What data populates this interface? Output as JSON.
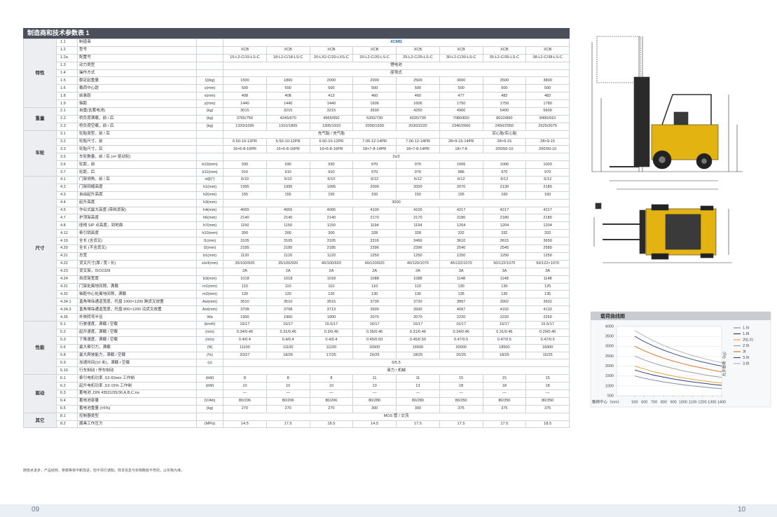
{
  "title": "制造商和技术参数表 1",
  "sections": [
    {
      "group": "特性",
      "rows": [
        {
          "code": "1.1",
          "item": "制造商",
          "values": [
            "XCMG",
            null,
            null,
            null,
            null,
            null,
            null,
            null
          ]
        },
        {
          "code": "1.2",
          "item": "型号",
          "values": [
            "XCB",
            "XCB",
            "XCB",
            "XCB",
            "XCB",
            "XCB",
            "XCB",
            "XCB"
          ]
        },
        {
          "code": "1.2a",
          "item": "配置号",
          "values": [
            "15-L2-C/15-LS-C",
            "18-L2-C/18-LS-C",
            "20-LX2-C/20-LXS-C",
            "20-L2-C/20-LS-C",
            "25-L2-C/25-LS-C",
            "30-L2-C/30-LS-C",
            "35-L2-C/35-LS-C",
            "38-L2-C/38-LS-C"
          ]
        },
        {
          "code": "1.3",
          "item": "动力类型",
          "values": [
            "锂电池",
            null,
            null,
            null,
            null,
            null,
            null,
            null
          ]
        },
        {
          "code": "1.4",
          "item": "操作方式",
          "values": [
            "座驾式",
            null,
            null,
            null,
            null,
            null,
            null,
            null
          ]
        },
        {
          "code": "1.5",
          "item": "额定起重量",
          "unit": "Q(kg)",
          "values": [
            "1500",
            "1800",
            "2000",
            "2000",
            "2500",
            "3000",
            "3500",
            "3800"
          ]
        },
        {
          "code": "1.6",
          "item": "载荷中心距",
          "unit": "c(mm)",
          "values": [
            "500",
            "500",
            "500",
            "500",
            "500",
            "500",
            "500",
            "500"
          ]
        },
        {
          "code": "1.8",
          "item": "前悬距",
          "unit": "x(mm)",
          "values": [
            "408",
            "408",
            "413",
            "460",
            "460",
            "477",
            "482",
            "482"
          ]
        },
        {
          "code": "1.9",
          "item": "轴距",
          "unit": "y(mm)",
          "values": [
            "1440",
            "1440",
            "1440",
            "1606",
            "1606",
            "1750",
            "1750",
            "1780"
          ]
        }
      ]
    },
    {
      "group": "重量",
      "rows": [
        {
          "code": "2.1",
          "item": "自重(含蓄电池)",
          "unit": "(kg)",
          "values": [
            "3015",
            "3215",
            "3215",
            "3930",
            "4250",
            "4900",
            "5400",
            "5600"
          ]
        },
        {
          "code": "2.2",
          "item": "桥负荷满载，前 / 后",
          "unit": "(kg)",
          "values": [
            "3765/750",
            "4245/670",
            "4565/650",
            "5200/730",
            "6020/730",
            "7080/820",
            "8010/890",
            "8490/910"
          ]
        },
        {
          "code": "2.3",
          "item": "桥负荷空载，前 / 后",
          "unit": "(kg)",
          "values": [
            "1320/1695",
            "1310/1805",
            "1305/1910",
            "2000/1930",
            "2030/2220",
            "2340/2560",
            "2450/2950",
            "2525/3075"
          ]
        }
      ]
    },
    {
      "group": "车轮",
      "rows": [
        {
          "code": "3.1",
          "item": "轮胎类型，前 / 后",
          "values": [
            "充气胎 / 充气胎",
            null,
            null,
            null,
            null,
            "实心胎/实心胎",
            null,
            null
          ]
        },
        {
          "code": "3.2",
          "item": "轮胎尺寸，前",
          "values": [
            "6.50-10-12PR",
            "6.50-10-12PR",
            "6.50-10-12PR",
            "7.00-12-14PR",
            "7.00-12-14PR",
            "28×9-15-14PR",
            "28×9-15",
            "28×9-15"
          ]
        },
        {
          "code": "3.3",
          "item": "轮胎尺寸，后",
          "values": [
            "16×6-8-16PR",
            "16×6-8-16PR",
            "16×6-8-16PR",
            "18×7-8-14PR",
            "18×7-8-14PR",
            "18×7-8",
            "200/50-10",
            "200/50-10"
          ]
        },
        {
          "code": "3.5",
          "item": "车轮数量，前 / 后 (x= 驱动轮)",
          "values": [
            "2x/2",
            null,
            null,
            null,
            null,
            null,
            null,
            null
          ]
        },
        {
          "code": "3.6",
          "item": "轮距，前",
          "unit": "b10(mm)",
          "values": [
            "930",
            "930",
            "930",
            "970",
            "970",
            "1006",
            "1006",
            "1003"
          ]
        },
        {
          "code": "3.7",
          "item": "轮距，后",
          "unit": "b11(mm)",
          "values": [
            "910",
            "910",
            "910",
            "970",
            "970",
            "986",
            "970",
            "970"
          ]
        }
      ]
    },
    {
      "group": "尺寸",
      "rows": [
        {
          "code": "4.1",
          "item": "门架倾角，前 / 后",
          "unit": "α/β(°)",
          "values": [
            "6/10",
            "6/10",
            "6/10",
            "6/12",
            "6/12",
            "6/12",
            "6/12",
            "6/12"
          ]
        },
        {
          "code": "4.2",
          "item": "门架回缩高度",
          "unit": "h1(mm)",
          "values": [
            "1995",
            "1995",
            "1995",
            "2000",
            "2000",
            "2070",
            "2130",
            "2180"
          ]
        },
        {
          "code": "4.3",
          "item": "自由起升高度",
          "unit": "h2(mm)",
          "values": [
            "155",
            "155",
            "155",
            "150",
            "150",
            "155",
            "160",
            "160"
          ]
        },
        {
          "code": "4.4",
          "item": "起升高度",
          "unit": "h3(mm)",
          "values": [
            "3000",
            null,
            null,
            null,
            null,
            null,
            null,
            null
          ]
        },
        {
          "code": "4.5",
          "item": "作业式最大高度 (带挡货架)",
          "unit": "h4(mm)",
          "values": [
            "4065",
            "4065",
            "4065",
            "4100",
            "4100",
            "4217",
            "4217",
            "4217"
          ]
        },
        {
          "code": "4.7",
          "item": "护顶架高度",
          "unit": "h6(mm)",
          "values": [
            "2140",
            "2140",
            "2140",
            "2170",
            "2170",
            "2180",
            "2180",
            "2180"
          ]
        },
        {
          "code": "4.8",
          "item": "座椅 SIP 点高度，到地面",
          "unit": "h7(mm)",
          "values": [
            "1150",
            "1150",
            "1150",
            "1194",
            "1194",
            "1204",
            "1204",
            "1204"
          ]
        },
        {
          "code": "4.12",
          "item": "牵引销高度",
          "unit": "h10(mm)",
          "values": [
            "300",
            "300",
            "300",
            "328",
            "328",
            "332",
            "332",
            "332"
          ]
        },
        {
          "code": "4.19",
          "item": "全长 (含货叉)",
          "unit": "l1(mm)",
          "values": [
            "3105",
            "3105",
            "3105",
            "3316",
            "3466",
            "3610",
            "3615",
            "3650"
          ]
        },
        {
          "code": "4.20",
          "item": "全长 (不含货叉)",
          "unit": "l2(mm)",
          "values": [
            "2185",
            "2185",
            "2185",
            "2396",
            "2396",
            "2540",
            "2545",
            "2580"
          ]
        },
        {
          "code": "4.21",
          "item": "总宽",
          "unit": "b1(mm)",
          "values": [
            "1120",
            "1120",
            "1120",
            "1250",
            "1250",
            "1250",
            "1250",
            "1250"
          ]
        },
        {
          "code": "4.22",
          "item": "货叉尺寸(厚 / 宽 / 长)",
          "unit": "s/e/l(mm)",
          "values": [
            "35/100/920",
            "35/100/920",
            "40/100/920",
            "40/120/920",
            "40/120/1070",
            "45/122/1070",
            "50/122/1070",
            "50/122×1070"
          ]
        },
        {
          "code": "4.23",
          "item": "货叉架，ISO2328",
          "values": [
            "2A",
            "2A",
            "2A",
            "2A",
            "2A",
            "3A",
            "3A",
            "3A"
          ]
        },
        {
          "code": "4.24",
          "item": "挡货架宽度",
          "unit": "b3(mm)",
          "values": [
            "1018",
            "1018",
            "1018",
            "1088",
            "1088",
            "1148",
            "1148",
            "1148"
          ]
        },
        {
          "code": "4.31",
          "item": "门架处离地间隙，满载",
          "unit": "m1(mm)",
          "values": [
            "110",
            "110",
            "110",
            "110",
            "110",
            "130",
            "130",
            "125"
          ]
        },
        {
          "code": "4.32",
          "item": "轴距中心处离地间隙，满载",
          "unit": "m2(mm)",
          "values": [
            "120",
            "120",
            "120",
            "130",
            "130",
            "135",
            "135",
            "135"
          ]
        },
        {
          "code": "4.34.1",
          "item": "直角堆垛通道宽度，托盘 1000×1200 跨货叉放置",
          "unit": "Ast(mm)",
          "values": [
            "3510",
            "3510",
            "3515",
            "3730",
            "3730",
            "3897",
            "3902",
            "3932"
          ]
        },
        {
          "code": "4.34.2",
          "item": "直角堆垛通道宽度，托盘 800×1200 沿货叉放置",
          "unit": "Ast(mm)",
          "values": [
            "3708",
            "3708",
            "3713",
            "3930",
            "3930",
            "4097",
            "4102",
            "4132"
          ]
        },
        {
          "code": "4.35",
          "item": "外侧转弯半径",
          "unit": "Wa",
          "values": [
            "1900",
            "1900",
            "1900",
            "2070",
            "2070",
            "2220",
            "2220",
            "2250"
          ]
        }
      ]
    },
    {
      "group": "性能",
      "rows": [
        {
          "code": "5.1",
          "item": "行驶速度，满载 / 空载",
          "unit": "(km/h)",
          "values": [
            "16/17",
            "16/17",
            "15.5/17",
            "16/17",
            "16/17",
            "16/17",
            "16/17",
            "15.5/17"
          ]
        },
        {
          "code": "5.2",
          "item": "起升速度，满载 / 空载",
          "unit": "(m/s)",
          "values": [
            "0.34/0.46",
            "0.31/0.46",
            "0.3/0.46",
            "0.35/0.46",
            "0.31/0.46",
            "0.34/0.46",
            "0.31/0.46",
            "0.29/0.46"
          ]
        },
        {
          "code": "5.3",
          "item": "下降速度，满载 / 空载",
          "unit": "(m/s)",
          "values": [
            "0.4/0.4",
            "0.4/0.4",
            "0.4/0.4",
            "0.45/0.50",
            "0.45/0.50",
            "0.47/0.5",
            "0.47/0.5",
            "0.47/0.5"
          ]
        },
        {
          "code": "5.6",
          "item": "最大牵引力，满载",
          "unit": "(N)",
          "values": [
            "11100",
            "11100",
            "11100",
            "16500",
            "16500",
            "20000",
            "18500",
            "18300"
          ]
        },
        {
          "code": "5.8",
          "item": "最大爬坡能力，满载 / 空载",
          "unit": "(%)",
          "values": [
            "20/27",
            "18/26",
            "17/25",
            "20/25",
            "18/25",
            "20/25",
            "18/25",
            "16/25"
          ]
        },
        {
          "code": "5.9",
          "item": "加速时间(10 米)，满载 / 空载",
          "unit": "(s)",
          "values": [
            "6/5.5",
            null,
            null,
            null,
            null,
            null,
            null,
            null
          ]
        },
        {
          "code": "5.10",
          "item": "行车制动 / 停车制动",
          "values": [
            "液力 / 机械",
            null,
            null,
            null,
            null,
            null,
            null,
            null
          ]
        }
      ]
    },
    {
      "group": "驱动",
      "rows": [
        {
          "code": "6.1",
          "item": "牵引电机功率 ,S2-60min 工作制",
          "unit": "(kW)",
          "values": [
            "8",
            "8",
            "8",
            "11",
            "11",
            "15",
            "15",
            "15"
          ]
        },
        {
          "code": "6.2",
          "item": "起升电机功率 ,S3-15% 工作制",
          "unit": "(kW)",
          "values": [
            "10",
            "10",
            "10",
            "13",
            "13",
            "18",
            "18",
            "18"
          ]
        },
        {
          "code": "6.3",
          "item": "蓄电池 ,DIN 43531/35/36 A,B,C,no",
          "values": [
            "—",
            "—",
            "—",
            "—",
            "—",
            "—",
            "—",
            "—"
          ]
        },
        {
          "code": "6.4",
          "item": "蓄电池容量",
          "unit": "(V/Ah)",
          "values": [
            "80/206",
            "80/206",
            "80/206",
            "80/280",
            "80/280",
            "80/350",
            "80/350",
            "80/350"
          ]
        },
        {
          "code": "6.5",
          "item": "蓄电池重量 (±5%)",
          "unit": "(kg)",
          "values": [
            "270",
            "270",
            "270",
            "300",
            "300",
            "375",
            "375",
            "375"
          ]
        }
      ]
    },
    {
      "group": "其它",
      "rows": [
        {
          "code": "8.1",
          "item": "控制器类型",
          "values": [
            "MOS 管 / 交流",
            null,
            null,
            null,
            null,
            null,
            null,
            null
          ]
        },
        {
          "code": "8.2",
          "item": "属具工作压力",
          "unit": "(MPa)",
          "values": [
            "14.5",
            "17.5",
            "18.5",
            "14.5",
            "17.5",
            "17.5",
            "17.5",
            "18.5"
          ]
        }
      ]
    }
  ],
  "footnote": "随技术进步，产品结构、参数等将不断改进，恕不另行通知。样本信息与实物略有不符的，以实物为准。",
  "page_numbers": [
    "09",
    "10"
  ],
  "load_chart": {
    "type": "line",
    "title": "载荷曲线图",
    "x_label": "载荷中心（mm）",
    "y_label": "允许载荷（kg）",
    "x": [
      500,
      600,
      700,
      800,
      900,
      1000,
      1100,
      1200,
      1300,
      1400
    ],
    "xlim": [
      500,
      1400
    ],
    "xticks": [
      500,
      600,
      700,
      800,
      900,
      1000,
      1100,
      1200,
      1300,
      1400
    ],
    "ylim": [
      500,
      4000
    ],
    "yticks": [
      500,
      1000,
      1500,
      2000,
      2500,
      3000,
      3500,
      4000
    ],
    "grid": true,
    "series": [
      {
        "name": "1.5t",
        "color": "#7f8fa6",
        "values": [
          1500,
          1380,
          1290,
          1200,
          1130,
          1060,
          1000,
          950,
          900,
          860
        ]
      },
      {
        "name": "1.8t",
        "color": "#2f3f73",
        "values": [
          1800,
          1660,
          1540,
          1440,
          1350,
          1270,
          1200,
          1140,
          1080,
          1030
        ]
      },
      {
        "name": "2t(LX)",
        "color": "#e8a33d",
        "values": [
          2000,
          1850,
          1710,
          1600,
          1500,
          1410,
          1330,
          1260,
          1200,
          1140
        ]
      },
      {
        "name": "2.5t",
        "color": "#9aa0a6",
        "values": [
          2500,
          2310,
          2140,
          2000,
          1880,
          1760,
          1670,
          1580,
          1500,
          1430
        ]
      },
      {
        "name": "3t",
        "color": "#d9772b",
        "values": [
          3000,
          2770,
          2570,
          2400,
          2250,
          2120,
          2000,
          1900,
          1800,
          1710
        ]
      },
      {
        "name": "3.5t",
        "color": "#3b4f8c",
        "values": [
          3500,
          3230,
          3000,
          2800,
          2630,
          2470,
          2330,
          2210,
          2100,
          2000
        ]
      },
      {
        "name": "3.8t",
        "color": "#b5b5b5",
        "values": [
          3800,
          3510,
          3260,
          3040,
          2850,
          2680,
          2530,
          2400,
          2280,
          2170
        ]
      }
    ]
  }
}
